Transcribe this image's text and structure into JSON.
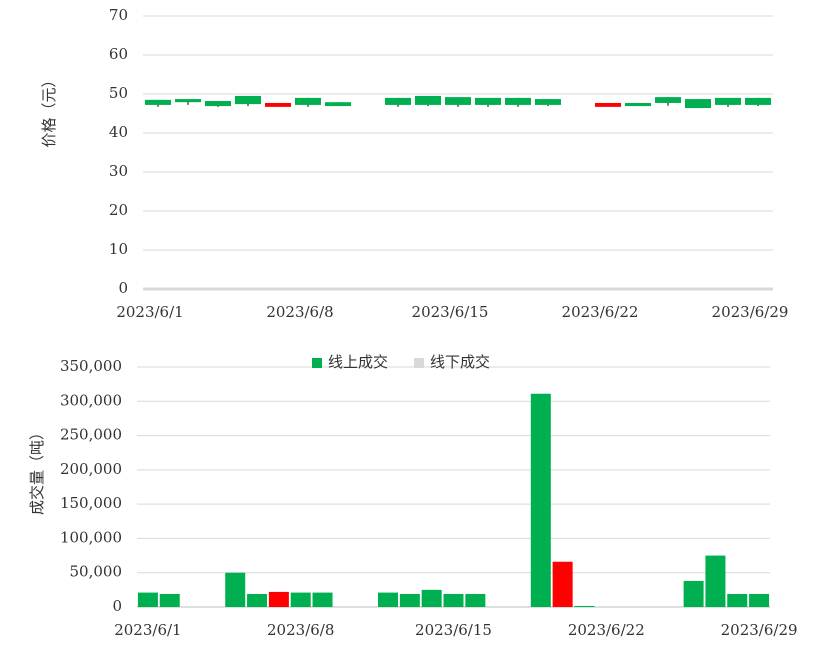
{
  "chart_data": [
    {
      "type": "candlestick",
      "y_label": "价格（元）",
      "categories": [
        "2023/6/1",
        null,
        null,
        null,
        null,
        "2023/6/8",
        null,
        null,
        null,
        null,
        "2023/6/15",
        null,
        null,
        null,
        null,
        "2023/6/22",
        null,
        null,
        null,
        null,
        "2023/6/29"
      ],
      "open": [
        48.5,
        48.7,
        48.2,
        49.5,
        46.7,
        49.0,
        47.9,
        null,
        49.0,
        49.5,
        49.2,
        49.0,
        49.0,
        48.7,
        null,
        46.7,
        47.7,
        49.2,
        48.7,
        49.0,
        49.0
      ],
      "close": [
        47.2,
        47.9,
        46.9,
        47.4,
        47.7,
        47.2,
        46.9,
        null,
        47.2,
        47.2,
        47.2,
        47.2,
        47.2,
        47.2,
        null,
        47.7,
        46.9,
        47.7,
        46.4,
        47.2,
        47.2
      ],
      "high": [
        48.5,
        48.7,
        48.2,
        49.5,
        47.7,
        49.0,
        47.9,
        null,
        49.0,
        49.5,
        49.2,
        49.0,
        49.0,
        48.7,
        null,
        47.7,
        47.7,
        49.2,
        48.7,
        49.0,
        49.0
      ],
      "low": [
        46.7,
        47.2,
        46.7,
        46.9,
        46.7,
        46.7,
        46.9,
        null,
        46.7,
        46.9,
        46.7,
        46.7,
        46.7,
        46.9,
        null,
        46.7,
        46.9,
        47.0,
        46.4,
        46.7,
        46.9
      ],
      "up_color": "#ff0000",
      "down_color": "#00b050",
      "ylim": [
        0,
        70
      ],
      "yticks": [
        0,
        10,
        20,
        30,
        40,
        50,
        60,
        70
      ],
      "grid": true
    },
    {
      "type": "bar",
      "y_label": "成交量（吨）",
      "legend": "top",
      "categories": [
        "2023/6/1",
        null,
        null,
        null,
        null,
        null,
        null,
        "2023/6/8",
        null,
        null,
        null,
        null,
        null,
        null,
        "2023/6/15",
        null,
        null,
        null,
        null,
        null,
        null,
        "2023/6/22",
        null,
        null,
        null,
        null,
        null,
        null,
        "2023/6/29"
      ],
      "series": [
        {
          "name": "线上成交",
          "color": "#00b050",
          "point_colors": [
            null,
            null,
            null,
            null,
            null,
            null,
            "#ff0000",
            null,
            null,
            null,
            null,
            null,
            null,
            null,
            null,
            null,
            null,
            null,
            null,
            "#ff0000",
            null,
            null,
            null,
            null,
            null,
            null,
            null,
            null,
            null
          ],
          "values": [
            21000,
            19000,
            null,
            null,
            50000,
            19000,
            22000,
            21000,
            21000,
            null,
            null,
            21000,
            19000,
            25000,
            19000,
            19000,
            null,
            null,
            311000,
            66000,
            1500,
            null,
            null,
            null,
            null,
            38000,
            75000,
            19000,
            19000
          ]
        },
        {
          "name": "线下成交",
          "color": "#d9d9d9",
          "values": [
            null,
            null,
            null,
            null,
            null,
            null,
            null,
            null,
            null,
            null,
            null,
            null,
            null,
            null,
            null,
            null,
            null,
            null,
            null,
            null,
            null,
            null,
            null,
            null,
            null,
            null,
            null,
            null,
            null
          ]
        }
      ],
      "ylim": [
        0,
        350000
      ],
      "yticks": [
        0,
        {
          "value": 50000,
          "label": "50,000"
        },
        {
          "value": 100000,
          "label": "100,000"
        },
        {
          "value": 150000,
          "label": "150,000"
        },
        {
          "value": 200000,
          "label": "200,000"
        },
        {
          "value": 250000,
          "label": "250,000"
        },
        {
          "value": 300000,
          "label": "300,000"
        },
        {
          "value": 350000,
          "label": "350,000"
        }
      ],
      "grid": true
    }
  ]
}
